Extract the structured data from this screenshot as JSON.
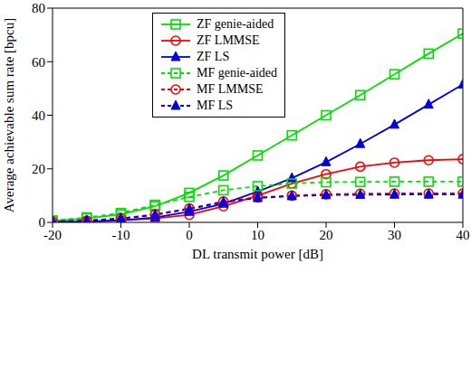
{
  "chart_data": {
    "type": "line",
    "xlabel": "DL transmit power [dB]",
    "ylabel": "Average achievable sum rate [bpcu]",
    "x": [
      -20,
      -15,
      -10,
      -5,
      0,
      5,
      10,
      15,
      20,
      25,
      30,
      35,
      40
    ],
    "xlim": [
      -20,
      40
    ],
    "xticks": [
      -20,
      -10,
      0,
      10,
      20,
      30,
      40
    ],
    "ylim": [
      0,
      80
    ],
    "yticks": [
      0,
      20,
      40,
      60,
      80
    ],
    "grid": false,
    "legend": "top",
    "series": [
      {
        "name": "ZF genie-aided",
        "color": "#00e000",
        "marker": "square",
        "line_style": "solid",
        "values": [
          0.5,
          1.5,
          3,
          6,
          11,
          17.5,
          25,
          32.5,
          40,
          47.5,
          55.3,
          63,
          70.5
        ]
      },
      {
        "name": "ZF LMMSE",
        "color": "#ff0000",
        "marker": "circle",
        "line_style": "solid",
        "values": [
          0.1,
          0.3,
          0.7,
          1.5,
          2.8,
          6,
          10,
          14.5,
          18,
          20.8,
          22.3,
          23.2,
          23.6
        ]
      },
      {
        "name": "ZF LS",
        "color": "#0000e0",
        "marker": "triangle",
        "line_style": "solid",
        "values": [
          0.1,
          0.3,
          0.8,
          1.8,
          4,
          7,
          11.5,
          16.5,
          22.5,
          29.3,
          36.5,
          44,
          51.5
        ]
      },
      {
        "name": "MF genie-aided",
        "color": "#00e000",
        "marker": "square",
        "line_style": "dashed",
        "values": [
          0.7,
          1.8,
          3.5,
          6.5,
          9.5,
          12,
          13.5,
          14.5,
          15,
          15.1,
          15.2,
          15.2,
          15.2
        ]
      },
      {
        "name": "MF LMMSE",
        "color": "#ff0000",
        "marker": "circle",
        "line_style": "dashed",
        "values": [
          0.3,
          0.7,
          1.5,
          3,
          5.2,
          7.8,
          9.3,
          10,
          10.5,
          10.7,
          10.8,
          10.8,
          10.8
        ]
      },
      {
        "name": "MF LS",
        "color": "#0000e0",
        "marker": "triangle",
        "line_style": "dashed",
        "values": [
          0.3,
          0.7,
          1.4,
          2.8,
          5,
          7.5,
          9.1,
          9.8,
          10.2,
          10.3,
          10.4,
          10.4,
          10.4
        ]
      }
    ]
  }
}
